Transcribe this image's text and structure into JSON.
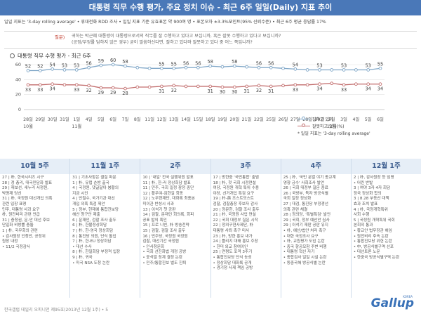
{
  "title": "대통령 직무 수행 평가, 주요 정치 이슈 - 최근 6주 일일(Daily) 지표 추이",
  "method": "일일 지표는 '3-day rolling average' • 휴대전화 RDD 조사 • 일일 지표 기준 유효표본 약 900여 명 • 표본오차 ±3.3%포인트(95% 신뢰수준) • 최근 6주 평균 응답률 17%",
  "question_label": "질문)",
  "question_text": "귀하는 박근혜 대통령이 대통령으로서의 직무를 잘 수행하고 있다고 보십니까, 혹은 잘못 수행하고 있다고 보십니까? (공정/부정률 답하지 않은 경우) 굳이 말씀하신다면, 잘하고 있다와 잘못하고 있다 중 어느 쪽입니까?",
  "chart_header": "대통령 직무 수행 평가 - 최근 6주",
  "legend": {
    "positive": "잘하고 있다",
    "negative": "잘못하고 있다(%)",
    "note": "* 일일 지표는 '3-day rolling average'"
  },
  "chart_data": {
    "type": "line",
    "title": "대통령 직무 수행 평가 - 최근 6주",
    "ylim": [
      0,
      60
    ],
    "yticks": [
      0,
      20,
      40,
      60
    ],
    "grid": true,
    "legend_position": "bottom-right",
    "x": [
      "28일",
      "29일",
      "30일",
      "31일",
      "1일",
      "4일",
      "5일",
      "6일",
      "7일",
      "8일",
      "11일",
      "12일",
      "13일",
      "14일",
      "15일",
      "18일",
      "19일",
      "20일",
      "21일",
      "22일",
      "25일",
      "26일",
      "27일",
      "28일",
      "29일",
      "2일",
      "3일",
      "4일",
      "5일",
      "6일"
    ],
    "month_labels": [
      {
        "label": "10월",
        "index": 0
      },
      {
        "label": "11월",
        "index": 4
      },
      {
        "label": "12월",
        "index": 25
      }
    ],
    "series": [
      {
        "name": "잘하고 있다",
        "values": [
          52,
          52,
          54,
          53,
          53,
          56,
          59,
          60,
          58,
          56,
          55,
          55,
          55,
          56,
          56,
          58,
          57,
          58,
          57,
          56,
          56,
          55,
          54,
          53,
          53,
          53,
          53,
          53,
          53,
          55
        ],
        "labels": [
          52,
          52,
          54,
          53,
          53,
          56,
          59,
          60,
          58,
          null,
          null,
          55,
          55,
          56,
          56,
          58,
          null,
          58,
          null,
          56,
          56,
          null,
          54,
          null,
          53,
          null,
          53,
          null,
          53,
          55
        ]
      },
      {
        "name": "잘못하고 있다",
        "values": [
          33,
          33,
          34,
          33,
          33,
          32,
          29,
          29,
          28,
          30,
          30,
          31,
          32,
          31,
          31,
          31,
          30,
          30,
          31,
          32,
          31,
          32,
          33,
          33,
          34,
          35,
          33,
          34,
          34,
          34
        ],
        "labels": [
          33,
          33,
          34,
          null,
          33,
          32,
          29,
          29,
          28,
          null,
          null,
          31,
          32,
          null,
          null,
          31,
          30,
          30,
          31,
          32,
          31,
          null,
          33,
          null,
          34,
          null,
          33,
          null,
          34,
          34
        ]
      }
    ]
  },
  "weeks": [
    {
      "title": "10월 5주",
      "items": [
        "27 | 朴, 한국시리즈 시구",
        "28 | 정 총리, 대국민담화 발표",
        "29 | 재보선, 새누리 서청원,",
        "     박명재 당선",
        "31 | 朴, 국정원 대선개입 의혹",
        "     관련 입장 표명",
        "     민주, 대통령 사과 요구",
        "     朴, 원전비리 관련 언급",
        "31 | 충청권, 문-안 대선 후보",
        "     단일화 비방률 충돌",
        "1 | 朴, 국무회의 관련",
        "  • 감사원장 인청안, 공정위",
        "    원장 내정",
        "  • 11/2 국정감사"
      ]
    },
    {
      "title": "11월 1주",
      "items": [
        "31 | 기초사항은 결질 파문",
        "1 | 朴, 유럽 순방 출국",
        "4 | 국정원, 댓글달아 봉황의",
        "     지금 시인",
        "4 | 안철수, 국가기관 대선",
        "     개입 의혹 특검 제안",
        "5 | 정부, 헌재에 통합진보당",
        "     해산 청구안 제출",
        "6 | 문재인, 검찰 조사 출두",
        "6 | 朴, 한불정상회담",
        "7 | 朴, 한-영국 정상회담",
        "8 | 통진당 의원, 단식 돌입",
        "7 | 朴, 한-EU 정상회담",
        "  • 대선 수사",
        "8 | 朴, 한일회담 부정적 입장",
        "9 | 朴, 귀국",
        "  • 미국 NSA 도청 논란"
      ]
    },
    {
      "title": "2주",
      "items": [
        "10 | '내일' 전국 실행위원 발표",
        "11 | 朴, 한-러 정상회담 발표",
        "11 | 민주, 국회 일정 잠정 중단",
        "12 | 황우여-김한길 회동",
        "12 | 노무현재단, 대화록 최종본",
        "     미이관 반성시 사과",
        "13 | 이석기 첫 공판",
        "14 | 검찰, 문재인 회의록, 회피",
        "     공표 발의 혹인",
        "15 | 프로 니빈, 朴 방송전략",
        "15 | 검찰, 검찰 조사 출두",
        "16 | 민주당, 국정원 국정원",
        "     검찰, 대선기간 국정원",
        "  • 인사청문회",
        "  • 국회 선진화법 개정 공방",
        "  • 윤석열 징계 결정 논란",
        "  • 민주/통합진보 벌도 진퇴"
      ]
    },
    {
      "title": "3주",
      "items": [
        "17 | 방한중 '국민통합' 출범",
        "18 | 朴, 첫 국회 시정연설",
        "     여당, 국정원 개혁 특위 수용",
        "     야당, 선거개입 특검 요구",
        "19 | 朴-英 조스트모스트",
        "     검찰, 검찰총장 후보자 감사",
        "20 | 정문헌, 검찰 조사 출두",
        "21 | 朴, 국정원 사업 연설",
        "22 | 국회 대정부 질문 시작",
        "22 | 정의구현사제단, 朴",
        "     대통령 사퇴 촉구 미사",
        "23 | 朴, 방한 홍보 내가",
        "24 | 틀리지 대해 홍보 주장",
        "  • 한미 외교 참여이인",
        "25 | 연평도 포격 3주기",
        "  • 통합진보당 단식 농성",
        "  • 정상회담 대화록 공개",
        "  • 경기청 사제 책임 공방"
      ]
    },
    {
      "title": "4주",
      "items": [
        "25 | 朴, '국민 분열 야기 종교계",
        "     영향 긍수' 사회조사 발언",
        "26 | 국회 대정부 질문 종료",
        "26 | 국방부, 독자 방공식별",
        "     국회 일정 정상화",
        "27 | 대검, 통진당 부정경선",
        "     의혹 관련 체결",
        "28 | 정의당, '특별특검' 발언",
        "29 | 국회, 정부 예산안 심사",
        "29 | 이석기 재판 공판 유지",
        "  • 朴, 예산/법안 처리 촉구",
        "  • 대한 국정조사 요구",
        "  • 朴, 교원평가 도입 논란",
        "  • 중국 항공모함 주변 비행",
        "  • 대통령 혁신 자기",
        "  • 종합검사 일일 시설 논란",
        "  • 동중국해 방공식별 논란"
      ]
    },
    {
      "title": "12월 1주",
      "items": [
        "2 | 朴, 감사원장 등 임명",
        "  • 어린 반발",
        "3 | 여야 3자 4자 회담",
        "     정국 정상화 합의",
        "3 | 8.28 부동산 대책",
        "     효과 조치 발표",
        "4 | 朴, 국정개혁특위",
        "     사회 수행",
        "5 | 국정원 개혁특위 국회",
        "     본회의 통과",
        "  • 황교안 법무장관 해임",
        "  • 원전비리 후속 논란",
        "  • 통합진보당 위헌 논란",
        "  • 中, 방공식별구역 선포",
        "  • 대선토론 노문",
        "  • 한중국 방공식별구역 논란"
      ]
    }
  ],
  "footer": "한국갤럽 데일리 오피니언 제95호(2013년 12월 1주) • 5",
  "logo": "Gallup",
  "logo_sub": "KOREA"
}
